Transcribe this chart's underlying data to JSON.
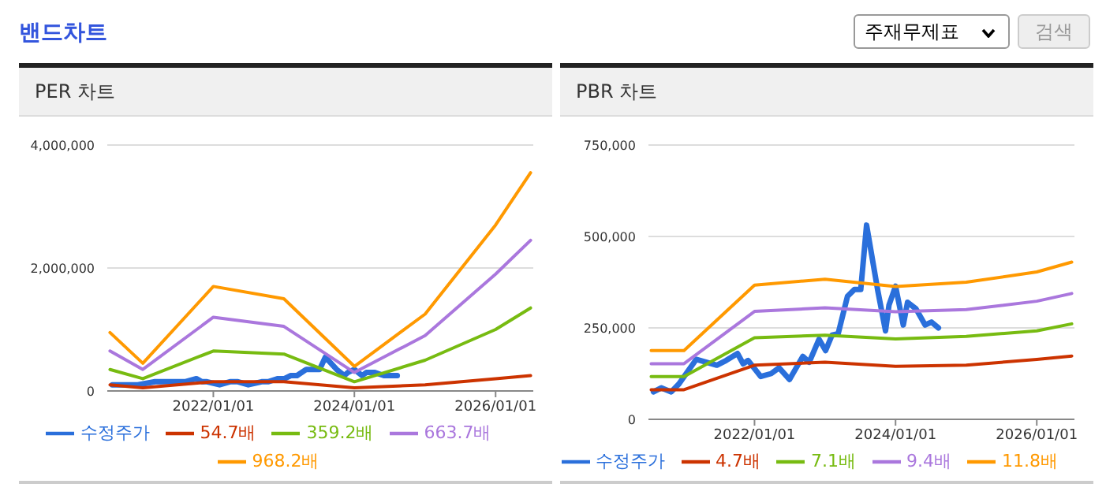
{
  "chart_data": [
    {
      "type": "line",
      "title": "PER 차트",
      "annotations": [
        "밴드차트",
        "주재무제표",
        "검색"
      ],
      "xlim": [
        "2020-07-01",
        "2026-07-15"
      ],
      "xticks": [
        {
          "value": "2022-01-01",
          "label": "2022/01/01"
        },
        {
          "value": "2024-01-01",
          "label": "2024/01/01"
        },
        {
          "value": "2026-01-01",
          "label": "2026/01/01"
        }
      ],
      "ylim": [
        0,
        4000000
      ],
      "yticks": [
        0,
        {
          "value": 2000000,
          "label": "2,000,000"
        },
        {
          "value": 4000000,
          "label": "4,000,000"
        }
      ],
      "grid": "y",
      "legend": "bottom",
      "marker": "none",
      "line_style": "solid",
      "series": [
        {
          "name": "수정주가",
          "color": "#2a6fdb",
          "x": [
            "2020-07-27",
            "2020-09-05",
            "2020-10-27",
            "2020-12-06",
            "2021-03-05",
            "2021-06-20",
            "2021-08-07",
            "2021-10-05",
            "2021-11-03",
            "2021-11-29",
            "2022-02-02",
            "2022-03-28",
            "2022-05-08",
            "2022-07-01",
            "2022-09-08",
            "2022-10-11",
            "2022-12-01",
            "2023-01-04",
            "2023-02-06",
            "2023-03-10",
            "2023-04-27",
            "2023-06-02",
            "2023-07-05",
            "2023-08-04",
            "2023-10-01",
            "2023-11-10",
            "2023-11-28",
            "2024-01-01",
            "2024-02-10",
            "2024-03-03",
            "2024-04-16",
            "2024-06-02",
            "2024-07-05",
            "2024-08-10"
          ],
          "values": [
            100000,
            100000,
            100000,
            100000,
            150000,
            150000,
            150000,
            200000,
            150000,
            150000,
            100000,
            150000,
            150000,
            100000,
            150000,
            150000,
            200000,
            200000,
            250000,
            250000,
            350000,
            350000,
            350000,
            550000,
            350000,
            250000,
            300000,
            350000,
            250000,
            300000,
            300000,
            250000,
            250000,
            250000
          ]
        },
        {
          "name": "54.7배",
          "color": "#cc3300",
          "x": [
            "2020-07-15",
            "2021-01-01",
            "2022-01-01",
            "2023-01-01",
            "2024-01-01",
            "2025-01-01",
            "2026-01-01",
            "2026-07-01"
          ],
          "values": [
            100000,
            50000,
            150000,
            150000,
            50000,
            100000,
            200000,
            250000
          ]
        },
        {
          "name": "359.2배",
          "color": "#77bb11",
          "x": [
            "2020-07-15",
            "2021-01-01",
            "2022-01-01",
            "2023-01-01",
            "2024-01-01",
            "2025-01-01",
            "2026-01-01",
            "2026-07-01"
          ],
          "values": [
            350000,
            200000,
            650000,
            600000,
            150000,
            500000,
            1000000,
            1350000
          ]
        },
        {
          "name": "663.7배",
          "color": "#aa77dd",
          "x": [
            "2020-07-15",
            "2021-01-01",
            "2022-01-01",
            "2023-01-01",
            "2024-01-01",
            "2025-01-01",
            "2026-01-01",
            "2026-07-01"
          ],
          "values": [
            650000,
            350000,
            1200000,
            1050000,
            300000,
            900000,
            1900000,
            2450000
          ]
        },
        {
          "name": "968.2배",
          "color": "#ff9900",
          "x": [
            "2020-07-15",
            "2021-01-01",
            "2022-01-01",
            "2023-01-01",
            "2024-01-01",
            "2025-01-01",
            "2026-01-01",
            "2026-07-01"
          ],
          "values": [
            950000,
            450000,
            1700000,
            1500000,
            400000,
            1250000,
            2700000,
            3550000
          ]
        }
      ]
    },
    {
      "type": "line",
      "title": "PBR 차트",
      "xlim": [
        "2020-07-01",
        "2026-07-15"
      ],
      "xticks": [
        {
          "value": "2022-01-01",
          "label": "2022/01/01"
        },
        {
          "value": "2024-01-01",
          "label": "2024/01/01"
        },
        {
          "value": "2026-01-01",
          "label": "2026/01/01"
        }
      ],
      "ylim": [
        0,
        750000
      ],
      "yticks": [
        0,
        {
          "value": 250000,
          "label": "250,000"
        },
        {
          "value": 500000,
          "label": "500,000"
        },
        {
          "value": 750000,
          "label": "750,000"
        }
      ],
      "grid": "y",
      "legend": "bottom",
      "marker": "none",
      "line_style": "solid",
      "series": [
        {
          "name": "수정주가",
          "color": "#2a6fdb",
          "x": [
            "2020-07-27",
            "2020-09-05",
            "2020-10-27",
            "2020-12-06",
            "2021-03-05",
            "2021-06-20",
            "2021-08-07",
            "2021-10-05",
            "2021-11-03",
            "2021-11-29",
            "2022-02-02",
            "2022-03-28",
            "2022-05-08",
            "2022-07-01",
            "2022-09-08",
            "2022-10-11",
            "2022-12-01",
            "2023-01-04",
            "2023-02-06",
            "2023-03-10",
            "2023-04-27",
            "2023-06-02",
            "2023-07-05",
            "2023-08-04",
            "2023-10-01",
            "2023-11-10",
            "2023-11-28",
            "2024-01-01",
            "2024-02-10",
            "2024-03-03",
            "2024-04-16",
            "2024-06-02",
            "2024-07-05",
            "2024-08-10"
          ],
          "values": [
            75000,
            86000,
            75000,
            97000,
            164000,
            148000,
            161000,
            180000,
            152000,
            161000,
            117000,
            125000,
            141000,
            109000,
            172000,
            156000,
            219000,
            188000,
            230000,
            234000,
            336000,
            355000,
            355000,
            531000,
            352000,
            242000,
            312000,
            364000,
            258000,
            320000,
            302000,
            258000,
            266000,
            250000
          ]
        },
        {
          "name": "4.7배",
          "color": "#cc3300",
          "x": [
            "2020-07-15",
            "2021-01-01",
            "2022-01-01",
            "2023-01-01",
            "2024-01-01",
            "2025-01-01",
            "2026-01-01",
            "2026-07-01"
          ],
          "values": [
            81000,
            81000,
            148000,
            156000,
            145000,
            148000,
            164000,
            173000
          ]
        },
        {
          "name": "7.1배",
          "color": "#77bb11",
          "x": [
            "2020-07-15",
            "2021-01-01",
            "2022-01-01",
            "2023-01-01",
            "2024-01-01",
            "2025-01-01",
            "2026-01-01",
            "2026-07-01"
          ],
          "values": [
            117000,
            117000,
            223000,
            230000,
            220000,
            227000,
            242000,
            261000
          ]
        },
        {
          "name": "9.4배",
          "color": "#aa77dd",
          "x": [
            "2020-07-15",
            "2021-01-01",
            "2022-01-01",
            "2023-01-01",
            "2024-01-01",
            "2025-01-01",
            "2026-01-01",
            "2026-07-01"
          ],
          "values": [
            152000,
            152000,
            295000,
            305000,
            294000,
            300000,
            323000,
            344000
          ]
        },
        {
          "name": "11.8배",
          "color": "#ff9900",
          "x": [
            "2020-07-15",
            "2021-01-01",
            "2022-01-01",
            "2023-01-01",
            "2024-01-01",
            "2025-01-01",
            "2026-01-01",
            "2026-07-01"
          ],
          "values": [
            188000,
            188000,
            367000,
            383000,
            363000,
            375000,
            403000,
            430000
          ]
        }
      ]
    }
  ]
}
